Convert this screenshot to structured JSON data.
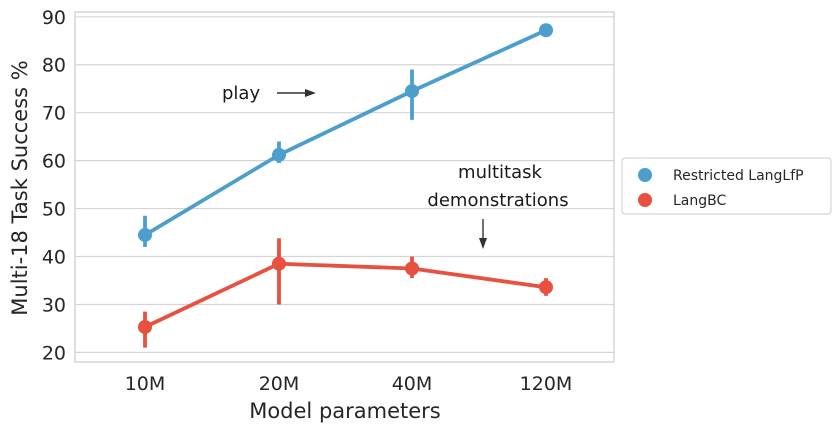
{
  "chart_data": {
    "type": "line",
    "categories": [
      "10M",
      "20M",
      "40M",
      "120M"
    ],
    "xlabel": "Model parameters",
    "ylabel": "Multi-18 Task Success %",
    "ylim": [
      18,
      91
    ],
    "yticks": [
      20,
      30,
      40,
      50,
      60,
      70,
      80,
      90
    ],
    "grid": "horizontal",
    "legend_position": "right",
    "series": [
      {
        "name": "Restricted LangLfP",
        "color": "#4c9ecd",
        "values": [
          44.5,
          61.2,
          74.5,
          87.2
        ],
        "err_low": [
          42.0,
          59.5,
          68.5,
          86.0
        ],
        "err_high": [
          48.5,
          64.0,
          79.0,
          88.0
        ]
      },
      {
        "name": "LangBC",
        "color": "#e8513f",
        "values": [
          25.3,
          38.5,
          37.5,
          33.6
        ],
        "err_low": [
          21.0,
          30.0,
          35.5,
          31.8
        ],
        "err_high": [
          28.5,
          43.8,
          40.0,
          35.5
        ]
      }
    ],
    "annotations": [
      {
        "text": "play"
      },
      {
        "lines": [
          "multitask",
          "demonstrations"
        ]
      }
    ]
  }
}
